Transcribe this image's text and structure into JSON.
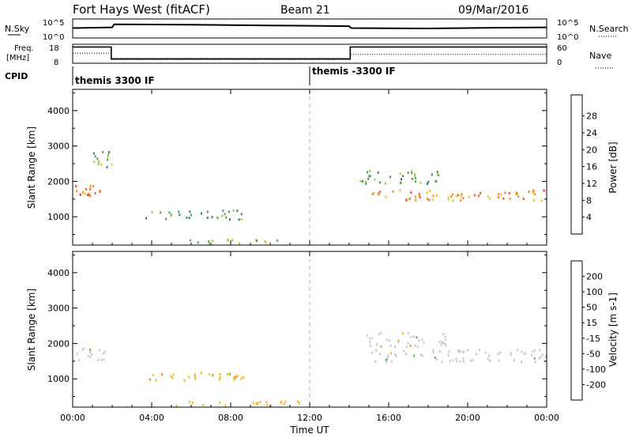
{
  "header": {
    "station": "Fort Hays West (fitACF)",
    "beam": "Beam 21",
    "date": "09/Mar/2016"
  },
  "noise_panel": {
    "left_label": "N.Sky",
    "right_label": "N.Search",
    "left_ticks": [
      "10^5",
      "10^0"
    ],
    "right_ticks": [
      "10^5",
      "10^0"
    ]
  },
  "freq_panel": {
    "left_label_1": "Freq.",
    "left_label_2": "[MHz]",
    "right_label": "Nave",
    "left_ticks": [
      "18",
      "8"
    ],
    "right_ticks": [
      "60",
      "0"
    ]
  },
  "cpid_panel": {
    "label": "CPID",
    "segments": [
      {
        "name": "themis 3300 IF",
        "start_hour": 0
      },
      {
        "name": "themis -3300 IF",
        "start_hour": 12
      }
    ]
  },
  "axes": {
    "xlabel": "Time UT",
    "ylabel": "Slant Range [km]",
    "xticks": [
      "00:00",
      "04:00",
      "08:00",
      "12:00",
      "16:00",
      "20:00",
      "00:00"
    ],
    "yticks": [
      "1000",
      "2000",
      "3000",
      "4000"
    ]
  },
  "colorbars": {
    "power": {
      "label": "Power [dB]",
      "ticks": [
        "4",
        "8",
        "12",
        "16",
        "20",
        "24",
        "28"
      ],
      "colors": [
        "#0000ff",
        "#2c4fa6",
        "#3b7f7a",
        "#49a449",
        "#a5c93c",
        "#f2c21b",
        "#f58a14",
        "#f25522",
        "#ea1a1a"
      ]
    },
    "velocity": {
      "label": "Velocity [m s-1]",
      "ticks": [
        "200",
        "100",
        "50",
        "15",
        "-15",
        "-50",
        "-100",
        "-200"
      ],
      "colors": [
        "#1b35b0",
        "#2c64a0",
        "#2a8a6e",
        "#4ec244",
        "#c8c8c8",
        "#f5b82a",
        "#f08a1c",
        "#ee5522",
        "#e61717"
      ]
    }
  },
  "chart_data": [
    {
      "type": "line",
      "title": "N.Sky / N.Search",
      "x_range_hours": [
        0,
        24
      ],
      "ylim_log10": [
        0,
        5
      ],
      "series": [
        {
          "name": "N.Sky",
          "x": [
            0,
            2,
            2.1,
            6,
            10,
            14,
            14.1,
            18,
            22,
            24
          ],
          "y_log10": [
            2.6,
            2.8,
            3.6,
            3.5,
            3.3,
            3.1,
            2.6,
            2.5,
            2.7,
            2.8
          ]
        }
      ]
    },
    {
      "type": "line",
      "title": "Freq. / Nave",
      "x_range_hours": [
        0,
        24
      ],
      "ylim": [
        8,
        18
      ],
      "series": [
        {
          "name": "Freq.",
          "x": [
            0,
            1.95,
            1.95,
            14.05,
            14.05,
            24
          ],
          "y": [
            16.6,
            16.6,
            10.2,
            10.2,
            16.6,
            16.6
          ]
        },
        {
          "name": "Nave",
          "x": [
            0,
            1.95,
            1.95,
            14.05,
            14.05,
            24
          ],
          "y_nave": [
            32,
            32,
            16,
            16,
            28,
            28
          ]
        }
      ]
    },
    {
      "type": "heatmap",
      "title": "Power [dB]",
      "xlabel": "Time UT",
      "ylabel": "Slant Range [km]",
      "x_range_hours": [
        0,
        24
      ],
      "ylim_km": [
        200,
        4600
      ],
      "regions": [
        {
          "t0": 0.0,
          "t1": 1.7,
          "r_center": 1700,
          "r_width": 400,
          "power_db": 24
        },
        {
          "t0": 1.0,
          "t1": 2.0,
          "r_center": 2700,
          "r_width": 600,
          "power_db": 14
        },
        {
          "t0": 3.6,
          "t1": 8.6,
          "r_center": 1050,
          "r_width": 260,
          "power_db": 12
        },
        {
          "t0": 5.5,
          "t1": 10.5,
          "r_center": 300,
          "r_width": 120,
          "power_db": 16
        },
        {
          "t0": 15.0,
          "t1": 24.0,
          "r_center": 1600,
          "r_width": 300,
          "power_db": 24
        },
        {
          "t0": 14.5,
          "t1": 18.5,
          "r_center": 2100,
          "r_width": 400,
          "power_db": 12
        }
      ]
    },
    {
      "type": "heatmap",
      "title": "Velocity [m s-1]",
      "xlabel": "Time UT",
      "ylabel": "Slant Range [km]",
      "x_range_hours": [
        0,
        24
      ],
      "ylim_km": [
        200,
        4600
      ],
      "regions": [
        {
          "t0": 0.0,
          "t1": 1.7,
          "r_center": 1700,
          "r_width": 400,
          "velocity": 0
        },
        {
          "t0": 3.6,
          "t1": 8.6,
          "r_center": 1050,
          "r_width": 260,
          "velocity": -30
        },
        {
          "t0": 4.0,
          "t1": 11.5,
          "r_center": 300,
          "r_width": 120,
          "velocity": -40
        },
        {
          "t0": 15.0,
          "t1": 24.0,
          "r_center": 1650,
          "r_width": 350,
          "velocity": 0
        },
        {
          "t0": 14.8,
          "t1": 19.0,
          "r_center": 2100,
          "r_width": 400,
          "velocity": 0
        }
      ]
    }
  ]
}
